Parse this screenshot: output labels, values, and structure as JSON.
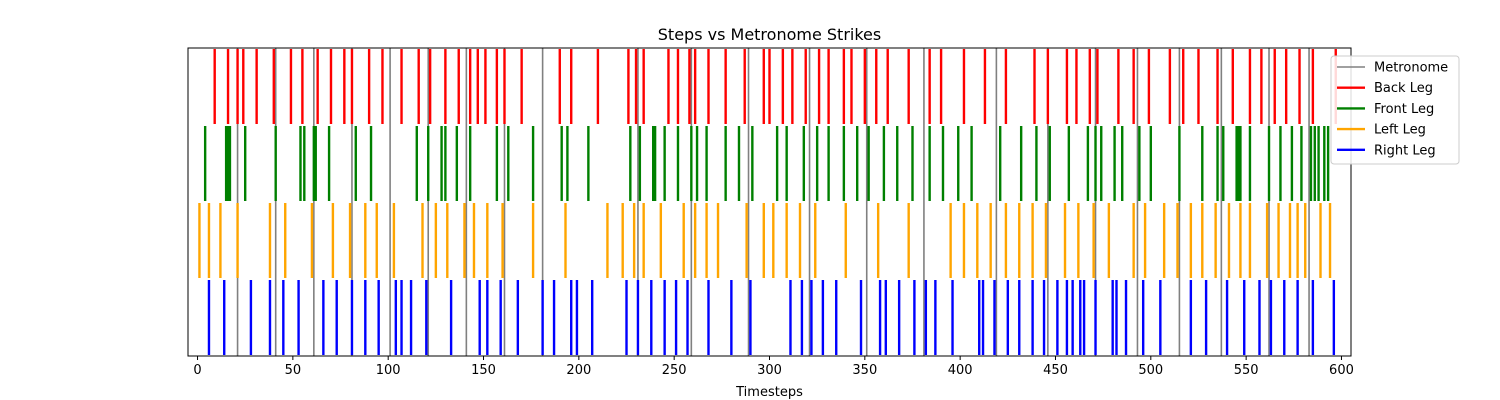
{
  "chart_data": {
    "type": "event",
    "title": "Steps vs Metronome Strikes",
    "xlabel": "Timesteps",
    "xlim": [
      -5,
      605
    ],
    "xticks": [
      0,
      50,
      100,
      150,
      200,
      250,
      300,
      350,
      400,
      450,
      500,
      550,
      600
    ],
    "legend_position": "upper-right",
    "colors": {
      "Metronome": "#808080",
      "Back Leg": "#ff0000",
      "Front Leg": "#008000",
      "Left Leg": "#ffa500",
      "Right Leg": "#0000ff"
    },
    "series": [
      {
        "name": "Metronome",
        "color": "#808080",
        "full_height": true,
        "x": [
          21,
          41,
          61,
          81,
          101,
          121,
          141,
          161,
          181,
          231,
          259,
          289,
          321,
          351,
          381,
          419,
          446,
          471,
          493,
          515,
          537,
          562,
          583
        ]
      },
      {
        "name": "Back Leg",
        "color": "#ff0000",
        "row": 3,
        "x": [
          9,
          16,
          21,
          24,
          31,
          40,
          49,
          55,
          63,
          70,
          77,
          81,
          90,
          97,
          107,
          116,
          122,
          130,
          137,
          143,
          147,
          151,
          157,
          161,
          170,
          190,
          196,
          210,
          226,
          230,
          234,
          247,
          252,
          258,
          261,
          268,
          277,
          287,
          297,
          300,
          307,
          312,
          319,
          326,
          331,
          339,
          343,
          350,
          356,
          362,
          373,
          384,
          390,
          402,
          413,
          424,
          439,
          446,
          456,
          461,
          468,
          472,
          483,
          491,
          499,
          510,
          517,
          525,
          535,
          543,
          552,
          558,
          565,
          571,
          578,
          585,
          597
        ]
      },
      {
        "name": "Front Leg",
        "color": "#008000",
        "row": 2,
        "x": [
          4,
          15,
          16,
          17,
          25,
          41,
          54,
          56,
          61,
          62,
          69,
          83,
          91,
          115,
          121,
          128,
          130,
          136,
          143,
          157,
          163,
          176,
          191,
          194,
          205,
          227,
          232,
          239,
          240,
          245,
          252,
          259,
          262,
          267,
          277,
          284,
          291,
          304,
          309,
          318,
          325,
          331,
          339,
          346,
          352,
          360,
          367,
          375,
          384,
          391,
          399,
          406,
          421,
          432,
          440,
          447,
          457,
          467,
          471,
          474,
          481,
          485,
          494,
          500,
          515,
          527,
          535,
          538,
          545,
          546,
          547,
          552,
          562,
          568,
          574,
          579,
          584,
          586,
          588,
          591,
          593
        ]
      },
      {
        "name": "Left Leg",
        "color": "#ffa500",
        "row": 1,
        "x": [
          1,
          6,
          12,
          21,
          38,
          46,
          60,
          71,
          80,
          88,
          94,
          103,
          118,
          125,
          131,
          140,
          145,
          152,
          160,
          176,
          193,
          215,
          223,
          229,
          234,
          243,
          255,
          261,
          267,
          273,
          288,
          297,
          302,
          309,
          316,
          324,
          340,
          357,
          373,
          395,
          402,
          409,
          416,
          424,
          431,
          438,
          445,
          455,
          462,
          470,
          478,
          491,
          497,
          507,
          514,
          521,
          527,
          534,
          541,
          547,
          552,
          561,
          567,
          573,
          577,
          581,
          589,
          594
        ]
      },
      {
        "name": "Right Leg",
        "color": "#0000ff",
        "row": 0,
        "x": [
          6,
          14,
          28,
          38,
          45,
          53,
          66,
          73,
          81,
          88,
          95,
          104,
          107,
          112,
          120,
          133,
          148,
          152,
          159,
          168,
          181,
          187,
          196,
          199,
          207,
          225,
          231,
          238,
          245,
          251,
          257,
          268,
          280,
          290,
          311,
          317,
          322,
          328,
          335,
          348,
          358,
          361,
          368,
          376,
          382,
          387,
          396,
          410,
          412,
          418,
          425,
          431,
          438,
          444,
          451,
          456,
          459,
          463,
          465,
          471,
          480,
          482,
          487,
          496,
          505,
          521,
          529,
          540,
          549,
          557,
          563,
          570,
          577,
          585,
          596
        ]
      }
    ]
  }
}
